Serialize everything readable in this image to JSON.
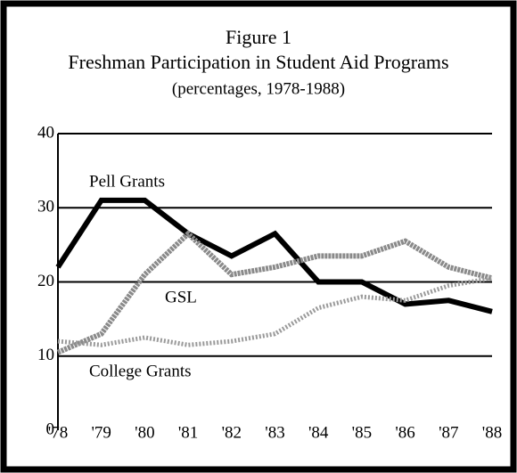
{
  "chart_data": {
    "type": "line",
    "title": "Figure 1",
    "subtitle": "Freshman Participation in Student Aid Programs",
    "note": "(percentages, 1978-1988)",
    "categories": [
      "'78",
      "'79",
      "'80",
      "'81",
      "'82",
      "'83",
      "'84",
      "'85",
      "'86",
      "'87",
      "'88"
    ],
    "series": [
      {
        "name": "Pell Grants",
        "color": "#000000",
        "values": [
          22,
          31,
          31,
          26.5,
          23.5,
          26.5,
          20,
          20,
          17,
          17.5,
          16
        ]
      },
      {
        "name": "GSL",
        "color": "#8a8a8a",
        "values": [
          10.5,
          13,
          21,
          26.5,
          21,
          22,
          23.5,
          23.5,
          25.5,
          22,
          20.5
        ]
      },
      {
        "name": "College Grants",
        "color": "#9a9a9a",
        "values": [
          12,
          11.5,
          12.5,
          11.5,
          12,
          13,
          16.5,
          18,
          17.5,
          19.5,
          20.5
        ]
      }
    ],
    "ylim": [
      0,
      40
    ],
    "yticks": [
      0,
      10,
      20,
      30,
      40
    ],
    "grid": true
  }
}
